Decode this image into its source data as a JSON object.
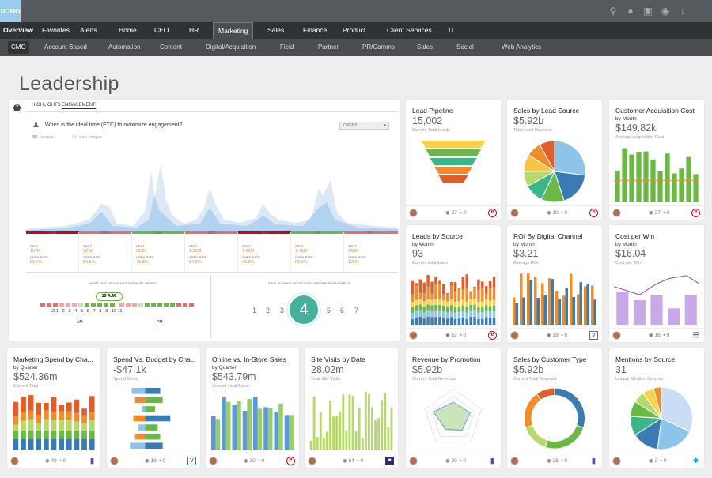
{
  "logo": "DOMO",
  "nav1": [
    {
      "label": "Overview"
    },
    {
      "label": "Favorites"
    },
    {
      "label": "Alerts"
    },
    {
      "label": "Home"
    },
    {
      "label": "CEO"
    },
    {
      "label": "HR"
    },
    {
      "label": "Marketing"
    },
    {
      "label": "Sales"
    },
    {
      "label": "Finance"
    },
    {
      "label": "Product"
    },
    {
      "label": "Client Services"
    },
    {
      "label": "IT"
    }
  ],
  "nav2": [
    {
      "label": "CMO"
    },
    {
      "label": "Account Based"
    },
    {
      "label": "Automation"
    },
    {
      "label": "Content"
    },
    {
      "label": "Digital/Acquisition"
    },
    {
      "label": "Field"
    },
    {
      "label": "Partner"
    },
    {
      "label": "PR/Comms"
    },
    {
      "label": "Sales"
    },
    {
      "label": "Social"
    },
    {
      "label": "Web Analytics"
    }
  ],
  "page_title": "Leadership",
  "big": {
    "tab1": "HIGHLIGHTS",
    "tab2": "ENGAGEMENT",
    "question": "When is the ideal time (ETC) to maximize engagement?",
    "dropdown": "OPENS",
    "legend1": "UNIQUE",
    "legend2": "NON-UNIQUE",
    "q2": "WHAT TIME OF DAY HAS THE MOST OPENS?",
    "q3": "IDEAL NUMBER OF TOUCHES BEFORE ENGAGEMENT",
    "time_badge": "10 A.M.",
    "am": "AM",
    "pm": "PM",
    "touch": "4",
    "days": [
      "SUN",
      "MON",
      "TUE",
      "WED",
      "THU",
      "FRI",
      "SAT"
    ],
    "sent_label": "SENT",
    "open_label": "OPEN RATE",
    "sent": [
      "157K",
      "921K",
      "823K",
      "1.52M",
      "1.66M",
      "1.78M",
      "145K"
    ],
    "open": [
      "85.7%",
      "54.5%",
      "45.8%",
      "54.6%",
      "40.8%",
      "63.2%",
      "125%"
    ],
    "hours": [
      "12",
      "1",
      "2",
      "3",
      "4",
      "5",
      "6",
      "7",
      "8",
      "9",
      "10",
      "11"
    ],
    "touches": [
      "1",
      "2",
      "3",
      "5",
      "6",
      "7"
    ]
  },
  "cards": [
    {
      "title": "Lead Pipeline",
      "sub": "",
      "value": "15,002",
      "label": "Current Total Leads",
      "views": "27",
      "comments": "0",
      "badge": "e"
    },
    {
      "title": "Sales by Lead Source",
      "sub": "",
      "value": "$5.92b",
      "label": "Total Lead Revenue",
      "views": "10",
      "comments": "0",
      "badge": "e"
    },
    {
      "title": "Customer Acquisition Cost",
      "sub": "by Month",
      "value": "$149.82k",
      "label": "Average Acquisition Cost",
      "views": "27",
      "comments": "0",
      "badge": "e"
    },
    {
      "title": "Leads by Source",
      "sub": "by Month",
      "value": "93",
      "label": "Current total leads",
      "views": "52",
      "comments": "0",
      "badge": "e"
    },
    {
      "title": "ROI By Digital Channel",
      "sub": "by Month",
      "value": "$3.21",
      "label": "Average ROI",
      "views": "19",
      "comments": "0",
      "badge": "v"
    },
    {
      "title": "Cost per Win",
      "sub": "by Month",
      "value": "$16.04",
      "label": "Cost per Win",
      "views": "16",
      "comments": "0",
      "badge": "list"
    },
    {
      "title": "Marketing Spend by Cha...",
      "sub": "by Quarter",
      "value": "$524.36m",
      "label": "Current Total",
      "views": "49",
      "comments": "0",
      "badge": "bar"
    },
    {
      "title": "Spend Vs. Budget by Cha...",
      "sub": "",
      "value": "-$47.1k",
      "label": "Spend Delta",
      "views": "19",
      "comments": "0",
      "badge": "v"
    },
    {
      "title": "Online vs. In-Store Sales",
      "sub": "by Quarter",
      "value": "$543.79m",
      "label": "Current Total Sales",
      "views": "30",
      "comments": "0",
      "badge": "e"
    },
    {
      "title": "Site Visits by Date",
      "sub": "",
      "value": "28.02m",
      "label": "Total Site Visits",
      "views": "64",
      "comments": "0",
      "badge": "img"
    },
    {
      "title": "Revenue by Promotion",
      "sub": "",
      "value": "$5.92b",
      "label": "Current Total Revenue",
      "views": "20",
      "comments": "0",
      "badge": "bar"
    },
    {
      "title": "Sales by Customer Type",
      "sub": "",
      "value": "$5.92b",
      "label": "Current Total Revenue",
      "views": "26",
      "comments": "0",
      "badge": "bar"
    },
    {
      "title": "Mentions by Source",
      "sub": "",
      "value": "31",
      "label": "Unique Mention Sources",
      "views": "2",
      "comments": "0",
      "badge": "tw"
    }
  ],
  "colors": {
    "green": "#6ab945",
    "orange": "#f08c2a",
    "blue": "#5b9bd5",
    "red": "#d0021b"
  }
}
